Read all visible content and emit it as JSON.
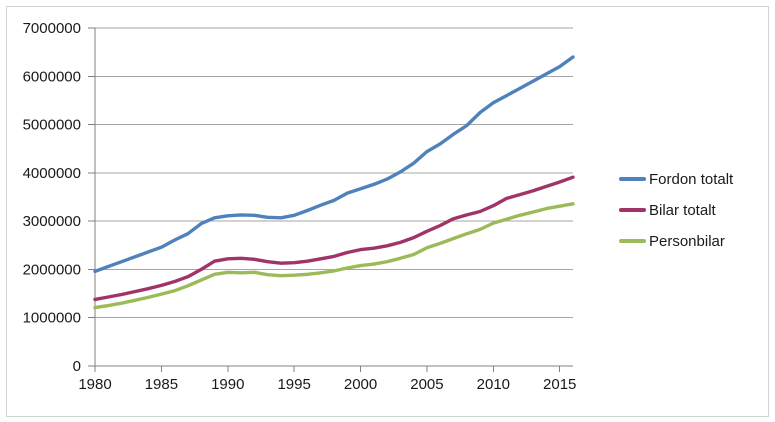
{
  "chart_data": {
    "type": "line",
    "title": "",
    "xlabel": "",
    "ylabel": "",
    "grid": "horizontal",
    "legend_position": "right",
    "xlim": [
      1980,
      2016
    ],
    "ylim": [
      0,
      7000000
    ],
    "xticks": [
      1980,
      1985,
      1990,
      1995,
      2000,
      2005,
      2010,
      2015
    ],
    "yticks": [
      0,
      1000000,
      2000000,
      3000000,
      4000000,
      5000000,
      6000000,
      7000000
    ],
    "x": [
      1980,
      1981,
      1982,
      1983,
      1984,
      1985,
      1986,
      1987,
      1988,
      1989,
      1990,
      1991,
      1992,
      1993,
      1994,
      1995,
      1996,
      1997,
      1998,
      1999,
      2000,
      2001,
      2002,
      2003,
      2004,
      2005,
      2006,
      2007,
      2008,
      2009,
      2010,
      2011,
      2012,
      2013,
      2014,
      2015,
      2016
    ],
    "series": [
      {
        "name": "Fordon totalt",
        "color": "#4F81BD",
        "values": [
          1960000,
          2060000,
          2160000,
          2260000,
          2360000,
          2460000,
          2610000,
          2740000,
          2950000,
          3070000,
          3110000,
          3130000,
          3120000,
          3080000,
          3070000,
          3120000,
          3220000,
          3330000,
          3430000,
          3580000,
          3670000,
          3760000,
          3870000,
          4020000,
          4200000,
          4440000,
          4600000,
          4800000,
          4980000,
          5250000,
          5450000,
          5600000,
          5750000,
          5900000,
          6050000,
          6200000,
          6400000
        ]
      },
      {
        "name": "Bilar totalt",
        "color": "#A03469",
        "values": [
          1380000,
          1430000,
          1480000,
          1540000,
          1600000,
          1670000,
          1750000,
          1850000,
          2000000,
          2170000,
          2220000,
          2230000,
          2210000,
          2160000,
          2130000,
          2140000,
          2170000,
          2220000,
          2270000,
          2350000,
          2410000,
          2440000,
          2490000,
          2560000,
          2660000,
          2790000,
          2910000,
          3050000,
          3130000,
          3200000,
          3320000,
          3470000,
          3550000,
          3630000,
          3720000,
          3810000,
          3910000
        ]
      },
      {
        "name": "Personbilar",
        "color": "#9BBB59",
        "values": [
          1210000,
          1250000,
          1300000,
          1360000,
          1420000,
          1490000,
          1560000,
          1660000,
          1780000,
          1900000,
          1940000,
          1930000,
          1940000,
          1890000,
          1870000,
          1880000,
          1900000,
          1930000,
          1970000,
          2030000,
          2080000,
          2110000,
          2160000,
          2230000,
          2310000,
          2450000,
          2540000,
          2640000,
          2740000,
          2830000,
          2960000,
          3040000,
          3120000,
          3190000,
          3260000,
          3310000,
          3360000
        ]
      }
    ]
  }
}
